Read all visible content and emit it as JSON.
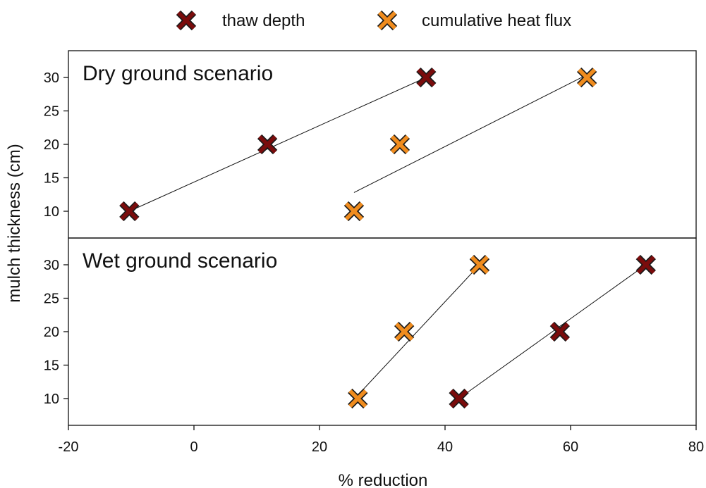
{
  "chart_data": {
    "type": "scatter",
    "xlabel": "% reduction",
    "ylabel": "mulch thickness (cm)",
    "xlim": [
      -20,
      80
    ],
    "xticks": [
      -20,
      0,
      20,
      40,
      60,
      80
    ],
    "ylim": [
      6,
      34
    ],
    "yticks": [
      10,
      15,
      20,
      25,
      30
    ],
    "legend_position": "top-center",
    "colors": {
      "thaw depth": "#7a0c0c",
      "cumulative heat flux": "#f08c1e",
      "edge": "#1a1a1a"
    },
    "legend": [
      {
        "name": "thaw depth",
        "color": "#7a0c0c"
      },
      {
        "name": "cumulative heat flux",
        "color": "#f08c1e"
      }
    ],
    "panels": [
      {
        "title": "Dry ground scenario",
        "series": [
          {
            "name": "thaw depth",
            "x": [
              -10.3,
              11.7,
              37.0
            ],
            "y": [
              10,
              20,
              30
            ],
            "trend": {
              "x": [
                -10.3,
                37.0
              ],
              "y": [
                10.0,
                30.0
              ]
            }
          },
          {
            "name": "cumulative heat flux",
            "x": [
              25.5,
              32.8,
              62.6
            ],
            "y": [
              10,
              20,
              30
            ],
            "trend": {
              "x": [
                25.5,
                62.6
              ],
              "y": [
                12.8,
                30.4
              ]
            }
          }
        ]
      },
      {
        "title": "Wet ground scenario",
        "series": [
          {
            "name": "thaw depth",
            "x": [
              42.2,
              58.3,
              72.0
            ],
            "y": [
              10,
              20,
              30
            ],
            "trend": {
              "x": [
                42.2,
                72.0
              ],
              "y": [
                10.0,
                30.0
              ]
            }
          },
          {
            "name": "cumulative heat flux",
            "x": [
              26.1,
              33.5,
              45.5
            ],
            "y": [
              10,
              20,
              30
            ],
            "trend": {
              "x": [
                26.1,
                45.5
              ],
              "y": [
                10.5,
                30.0
              ]
            }
          }
        ]
      }
    ]
  }
}
